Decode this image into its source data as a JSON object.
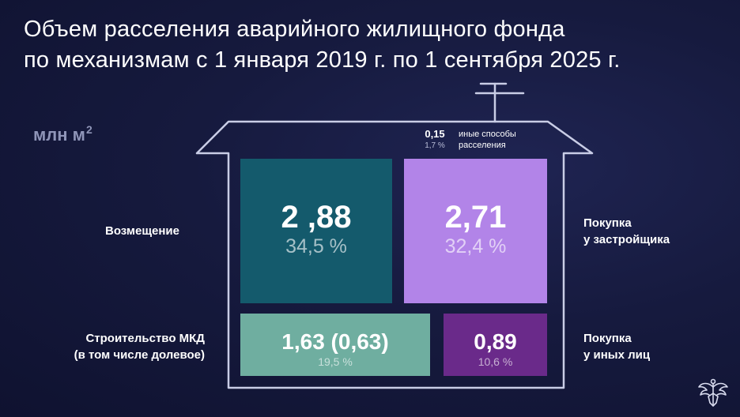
{
  "title_line1": "Объем расселения аварийного жилищного фонда",
  "title_line2": "по механизмам  с 1 января 2019 г. по 1 сентября 2025 г.",
  "unit_label": "млн м",
  "unit_superscript": "2",
  "colors": {
    "background": "#161a3e",
    "house_outline": "#c9cde6",
    "teal_dark": "#145a6c",
    "purple_light": "#b284e8",
    "teal_light": "#6faea0",
    "purple_dark": "#6a2a8a"
  },
  "chart_data": {
    "type": "treemap",
    "title": "Объем расселения аварийного жилищного фонда по механизмам  с 1 января 2019 г. по 1 сентября 2025 г.",
    "unit": "млн м2",
    "segments": [
      {
        "label": "Возмещение",
        "value_text": "2 ,88",
        "value": 2.88,
        "percent_text": "34,5 %",
        "percent": 34.5,
        "color": "#145a6c"
      },
      {
        "label": "Покупка у застройщика",
        "label_line1": "Покупка",
        "label_line2": "у застройщика",
        "value_text": "2,71",
        "value": 2.71,
        "percent_text": "32,4 %",
        "percent": 32.4,
        "color": "#b284e8"
      },
      {
        "label": "Строительство МКД (в том числе долевое)",
        "label_line1": "Строительство МКД",
        "label_line2": "(в том числе долевое)",
        "value_text": "1,63 (0,63)",
        "value": 1.63,
        "sub_value": 0.63,
        "percent_text": "19,5 %",
        "percent": 19.5,
        "color": "#6faea0"
      },
      {
        "label": "Покупка у иных лиц",
        "label_line1": "Покупка",
        "label_line2": "у иных лиц",
        "value_text": "0,89",
        "value": 0.89,
        "percent_text": "10,6 %",
        "percent": 10.6,
        "color": "#6a2a8a"
      },
      {
        "label": "иные способы расселения",
        "label_line1": "иные способы",
        "label_line2": "расселения",
        "value_text": "0,15",
        "value": 0.15,
        "percent_text": "1,7 %",
        "percent": 1.7
      }
    ]
  }
}
